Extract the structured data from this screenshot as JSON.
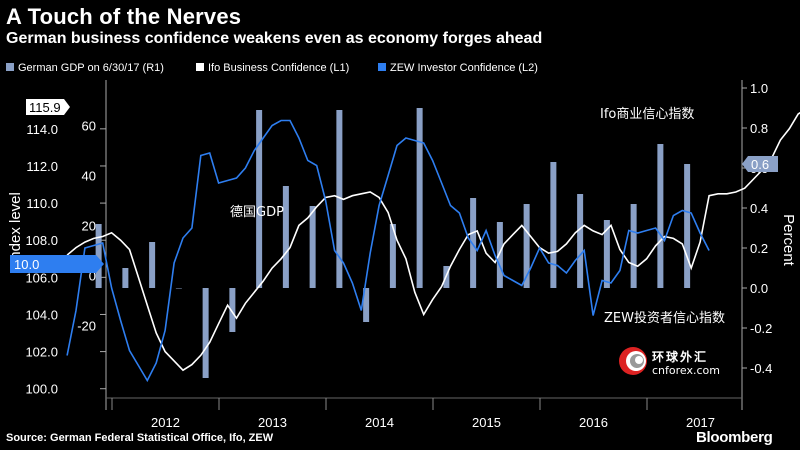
{
  "header": {
    "title": "A Touch of the Nerves",
    "subtitle": "German business confidence weakens even as economy forges ahead"
  },
  "footer": {
    "source": "Source: German Federal Statistical Office, Ifo, ZEW",
    "brand": "Bloomberg"
  },
  "watermark": {
    "name_cn": "环球外汇",
    "site": "cnforex.com",
    "logo_icon": "cnforex-logo-icon"
  },
  "colors": {
    "gdp_bar": "#8aa0c6",
    "ifo_line": "#ffffff",
    "zew_line": "#2e7ef0",
    "last_ifo_flag": "#ffffff",
    "last_zew_flag": "#2e7ef0",
    "last_gdp_flag": "#8aa0c6"
  },
  "chart_data": {
    "type": "bar+line",
    "legend": [
      {
        "name": "German GDP on 6/30/17 (R1)",
        "color": "#8aa0c6",
        "marker": "square"
      },
      {
        "name": "Ifo Business Confidence (L1)",
        "color": "#ffffff",
        "marker": "square"
      },
      {
        "name": "ZEW Investor Confidence (L2)",
        "color": "#2e7ef0",
        "marker": "square"
      }
    ],
    "legend_placement": "top",
    "grid": false,
    "y_left_label": "Index level",
    "y_right_label": "Percent",
    "y_left_outer": {
      "ticks": [
        100,
        102,
        104,
        106,
        108,
        110,
        112,
        114
      ],
      "range": [
        99.5,
        116.2
      ]
    },
    "y_left_inner": {
      "ticks": [
        -20,
        0,
        20,
        40,
        60
      ],
      "range": [
        -49,
        75
      ]
    },
    "y_right": {
      "ticks": [
        -0.4,
        -0.2,
        0.0,
        0.2,
        0.4,
        0.6,
        0.8,
        1.0
      ],
      "tick_labels": [
        "-0.4",
        "-0.2",
        "0.0",
        "0.2",
        "0.4",
        "0.6",
        "0.8",
        "1.0"
      ],
      "range": [
        -0.55,
        1.0
      ]
    },
    "x_labels": [
      "2012",
      "2013",
      "2014",
      "2015",
      "2016",
      "2017"
    ],
    "last_values": {
      "ifo": "115.9",
      "zew": "10.0",
      "gdp": "0.6"
    },
    "annotations": [
      {
        "text": "Ifo商业信心指数",
        "series": "ifo"
      },
      {
        "text": "德国GDP",
        "series": "gdp"
      },
      {
        "text": "ZEW投资者信心指数",
        "series": "zew"
      }
    ],
    "gdp_quarterly": [
      {
        "q": "2011Q4",
        "v": 0.32
      },
      {
        "q": "2012Q1",
        "v": 0.1
      },
      {
        "q": "2012Q2",
        "v": 0.23
      },
      {
        "q": "2012Q3",
        "v": 0.0
      },
      {
        "q": "2012Q4",
        "v": -0.45
      },
      {
        "q": "2013Q1",
        "v": -0.22
      },
      {
        "q": "2013Q2",
        "v": 0.89
      },
      {
        "q": "2013Q3",
        "v": 0.51
      },
      {
        "q": "2013Q4",
        "v": 0.41
      },
      {
        "q": "2014Q1",
        "v": 0.89
      },
      {
        "q": "2014Q2",
        "v": -0.17
      },
      {
        "q": "2014Q3",
        "v": 0.32
      },
      {
        "q": "2014Q4",
        "v": 0.9
      },
      {
        "q": "2015Q1",
        "v": 0.11
      },
      {
        "q": "2015Q2",
        "v": 0.45
      },
      {
        "q": "2015Q3",
        "v": 0.33
      },
      {
        "q": "2015Q4",
        "v": 0.42
      },
      {
        "q": "2016Q1",
        "v": 0.63
      },
      {
        "q": "2016Q2",
        "v": 0.47
      },
      {
        "q": "2016Q3",
        "v": 0.34
      },
      {
        "q": "2016Q4",
        "v": 0.42
      },
      {
        "q": "2017Q1",
        "v": 0.72
      },
      {
        "q": "2017Q2",
        "v": 0.62
      }
    ],
    "ifo_monthly": [
      107.2,
      107.6,
      107.9,
      108.1,
      108.2,
      108.4,
      108.0,
      107.5,
      106.0,
      104.5,
      103.0,
      102.0,
      101.5,
      101.0,
      101.3,
      101.8,
      102.5,
      103.5,
      104.5,
      103.8,
      104.6,
      105.2,
      105.8,
      106.5,
      107.0,
      107.6,
      108.8,
      109.2,
      109.8,
      110.3,
      110.4,
      110.2,
      110.4,
      110.5,
      110.6,
      110.3,
      109.5,
      108.0,
      107.0,
      105.2,
      104.0,
      104.8,
      105.5,
      106.6,
      107.5,
      108.3,
      108.5,
      107.3,
      106.8,
      107.8,
      108.3,
      108.8,
      108.2,
      107.6,
      107.3,
      107.4,
      107.8,
      108.4,
      108.8,
      108.5,
      108.3,
      108.8,
      107.5,
      106.8,
      106.6,
      107.0,
      107.7,
      108.2,
      108.1,
      107.8,
      106.5,
      107.9,
      110.4,
      110.5,
      110.5,
      110.6,
      110.8,
      111.3,
      111.8,
      112.4,
      113.4,
      114.0,
      114.8,
      115.1,
      115.8,
      116.0,
      115.9
    ],
    "zew_monthly": [
      -32,
      -14,
      11,
      12,
      13,
      -5,
      -18,
      -30,
      -36,
      -42,
      -35,
      -22,
      5,
      15,
      19,
      48,
      49,
      37,
      38,
      39,
      43,
      50,
      55,
      60,
      62,
      62,
      55,
      46,
      44,
      30,
      10,
      5,
      -3,
      -14,
      9,
      28,
      40,
      52,
      55,
      54,
      53,
      46,
      37,
      28,
      25,
      15,
      10,
      18,
      8,
      0,
      -2,
      -4,
      3,
      11,
      5,
      4,
      1,
      6,
      10,
      -16,
      -2,
      -3,
      2,
      18,
      17,
      18,
      19,
      14,
      24,
      26,
      25,
      17,
      10
    ]
  }
}
